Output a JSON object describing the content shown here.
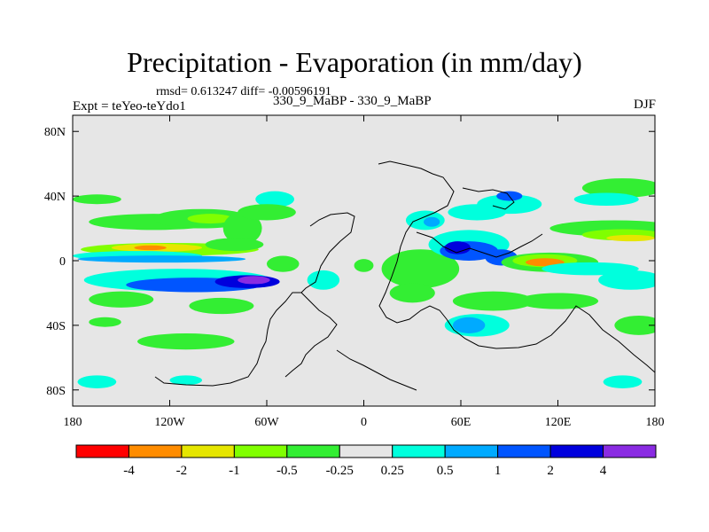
{
  "chart_data": {
    "type": "heatmap",
    "title": "Precipitation - Evaporation (in mm/day)",
    "stats_text": "rmsd= 0.613247 diff= -0.00596191",
    "left_label": "Expt = teYeo-teYdo1",
    "center_label": "330_9_MaBP - 330_9_MaBP",
    "right_label": "DJF",
    "x_range": [
      -180,
      180
    ],
    "y_range": [
      -90,
      90
    ],
    "x_ticks": [
      {
        "value": -180,
        "label": "180"
      },
      {
        "value": -120,
        "label": "120W"
      },
      {
        "value": -60,
        "label": "60W"
      },
      {
        "value": 0,
        "label": "0"
      },
      {
        "value": 60,
        "label": "60E"
      },
      {
        "value": 120,
        "label": "120E"
      },
      {
        "value": 180,
        "label": "180"
      }
    ],
    "y_ticks": [
      {
        "value": 80,
        "label": "80N"
      },
      {
        "value": 40,
        "label": "40N"
      },
      {
        "value": 0,
        "label": "0"
      },
      {
        "value": -40,
        "label": "40S"
      },
      {
        "value": -80,
        "label": "80S"
      }
    ],
    "colorbar": {
      "boundaries": [
        "-4",
        "-2",
        "-1",
        "-0.5",
        "-0.25",
        "0.25",
        "0.5",
        "1",
        "2",
        "4"
      ],
      "colors": [
        "#ff0000",
        "#ff8c00",
        "#e6e600",
        "#80ff00",
        "#33ee33",
        "#e6e6e6",
        "#00ffdd",
        "#00aaff",
        "#0055ff",
        "#0000dd",
        "#8a2be2"
      ]
    },
    "background_color": "#e6e6e6",
    "fields": [
      {
        "lon": -120,
        "lat": 7,
        "rx": 55,
        "ry": 4,
        "cls": 3
      },
      {
        "lon": -128,
        "lat": 8,
        "rx": 28,
        "ry": 2.5,
        "cls": 2
      },
      {
        "lon": -132,
        "lat": 8,
        "rx": 10,
        "ry": 1.5,
        "cls": 1
      },
      {
        "lon": -140,
        "lat": 3,
        "rx": 40,
        "ry": 3,
        "cls": 6
      },
      {
        "lon": -125,
        "lat": 1,
        "rx": 52,
        "ry": 2.2,
        "cls": 7
      },
      {
        "lon": -115,
        "lat": -12,
        "rx": 58,
        "ry": 7,
        "cls": 6
      },
      {
        "lon": -105,
        "lat": -15,
        "rx": 42,
        "ry": 4.5,
        "cls": 8
      },
      {
        "lon": -72,
        "lat": -13,
        "rx": 20,
        "ry": 4,
        "cls": 9
      },
      {
        "lon": -68,
        "lat": -12,
        "rx": 10,
        "ry": 2.5,
        "cls": 10
      },
      {
        "lon": -130,
        "lat": 24,
        "rx": 40,
        "ry": 5,
        "cls": 4
      },
      {
        "lon": -100,
        "lat": 26,
        "rx": 30,
        "ry": 6,
        "cls": 4
      },
      {
        "lon": -95,
        "lat": 26,
        "rx": 14,
        "ry": 3,
        "cls": 3
      },
      {
        "lon": -75,
        "lat": 20,
        "rx": 12,
        "ry": 10,
        "cls": 4
      },
      {
        "lon": -80,
        "lat": 10,
        "rx": 18,
        "ry": 4,
        "cls": 4
      },
      {
        "lon": -165,
        "lat": 38,
        "rx": 15,
        "ry": 3,
        "cls": 4
      },
      {
        "lon": -55,
        "lat": 38,
        "rx": 12,
        "ry": 5,
        "cls": 6
      },
      {
        "lon": -60,
        "lat": 30,
        "rx": 18,
        "ry": 5,
        "cls": 4
      },
      {
        "lon": -88,
        "lat": -28,
        "rx": 20,
        "ry": 5,
        "cls": 4
      },
      {
        "lon": -150,
        "lat": -24,
        "rx": 20,
        "ry": 5,
        "cls": 4
      },
      {
        "lon": -110,
        "lat": -50,
        "rx": 30,
        "ry": 5,
        "cls": 4
      },
      {
        "lon": -160,
        "lat": -38,
        "rx": 10,
        "ry": 3,
        "cls": 4
      },
      {
        "lon": -165,
        "lat": -75,
        "rx": 12,
        "ry": 4,
        "cls": 6
      },
      {
        "lon": -110,
        "lat": -74,
        "rx": 10,
        "ry": 3,
        "cls": 6
      },
      {
        "lon": -25,
        "lat": -12,
        "rx": 10,
        "ry": 6,
        "cls": 6
      },
      {
        "lon": -50,
        "lat": -2,
        "rx": 10,
        "ry": 5,
        "cls": 4
      },
      {
        "lon": 0,
        "lat": -3,
        "rx": 6,
        "ry": 4,
        "cls": 4
      },
      {
        "lon": 35,
        "lat": -5,
        "rx": 24,
        "ry": 12,
        "cls": 4
      },
      {
        "lon": 30,
        "lat": -20,
        "rx": 14,
        "ry": 6,
        "cls": 4
      },
      {
        "lon": 38,
        "lat": 25,
        "rx": 12,
        "ry": 6,
        "cls": 6
      },
      {
        "lon": 42,
        "lat": 24,
        "rx": 5,
        "ry": 3,
        "cls": 7
      },
      {
        "lon": 65,
        "lat": 10,
        "rx": 25,
        "ry": 9,
        "cls": 6
      },
      {
        "lon": 65,
        "lat": 6,
        "rx": 18,
        "ry": 6,
        "cls": 8
      },
      {
        "lon": 58,
        "lat": 8,
        "rx": 8,
        "ry": 4,
        "cls": 9
      },
      {
        "lon": 85,
        "lat": 2,
        "rx": 10,
        "ry": 5,
        "cls": 8
      },
      {
        "lon": 70,
        "lat": 30,
        "rx": 18,
        "ry": 5,
        "cls": 6
      },
      {
        "lon": 90,
        "lat": 35,
        "rx": 20,
        "ry": 6,
        "cls": 6
      },
      {
        "lon": 90,
        "lat": 40,
        "rx": 8,
        "ry": 3,
        "cls": 8
      },
      {
        "lon": 160,
        "lat": 45,
        "rx": 25,
        "ry": 6,
        "cls": 4
      },
      {
        "lon": 150,
        "lat": 38,
        "rx": 20,
        "ry": 4,
        "cls": 6
      },
      {
        "lon": 155,
        "lat": 20,
        "rx": 40,
        "ry": 5,
        "cls": 4
      },
      {
        "lon": 160,
        "lat": 16,
        "rx": 25,
        "ry": 3.5,
        "cls": 3
      },
      {
        "lon": 165,
        "lat": 14,
        "rx": 15,
        "ry": 2,
        "cls": 2
      },
      {
        "lon": 115,
        "lat": -1,
        "rx": 30,
        "ry": 6,
        "cls": 4
      },
      {
        "lon": 112,
        "lat": 0,
        "rx": 20,
        "ry": 4,
        "cls": 3
      },
      {
        "lon": 112,
        "lat": -1,
        "rx": 12,
        "ry": 2.5,
        "cls": 1
      },
      {
        "lon": 140,
        "lat": -5,
        "rx": 30,
        "ry": 4,
        "cls": 6
      },
      {
        "lon": 165,
        "lat": -12,
        "rx": 20,
        "ry": 6,
        "cls": 6
      },
      {
        "lon": 120,
        "lat": -25,
        "rx": 25,
        "ry": 5,
        "cls": 4
      },
      {
        "lon": 80,
        "lat": -25,
        "rx": 25,
        "ry": 6,
        "cls": 4
      },
      {
        "lon": 70,
        "lat": -40,
        "rx": 20,
        "ry": 7,
        "cls": 6
      },
      {
        "lon": 65,
        "lat": -40,
        "rx": 10,
        "ry": 5,
        "cls": 7
      },
      {
        "lon": 170,
        "lat": -40,
        "rx": 15,
        "ry": 6,
        "cls": 4
      },
      {
        "lon": 160,
        "lat": -75,
        "rx": 12,
        "ry": 4,
        "cls": 6
      }
    ]
  }
}
